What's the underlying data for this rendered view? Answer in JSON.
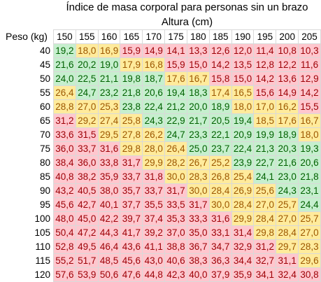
{
  "title": "Índice de masa corporal para personas sin un brazo",
  "subtitle": "Altura (cm)",
  "corner_label": "Peso (kg)",
  "heights": [
    "150",
    "155",
    "160",
    "165",
    "170",
    "175",
    "180",
    "185",
    "190",
    "195",
    "200",
    "205"
  ],
  "colors": {
    "green_bg": "#c6efce",
    "green_fg": "#006100",
    "yellow_bg": "#ffeb9c",
    "yellow_fg": "#9c5700",
    "red_bg": "#ffc7ce",
    "red_fg": "#9c0006"
  },
  "rows": [
    {
      "weight": "40",
      "cells": [
        [
          "19,2",
          "g"
        ],
        [
          "18,0",
          "y"
        ],
        [
          "16,9",
          "y"
        ],
        [
          "15,9",
          "r"
        ],
        [
          "14,9",
          "r"
        ],
        [
          "14,1",
          "r"
        ],
        [
          "13,3",
          "r"
        ],
        [
          "12,6",
          "r"
        ],
        [
          "12,0",
          "r"
        ],
        [
          "11,4",
          "r"
        ],
        [
          "10,8",
          "r"
        ],
        [
          "10,3",
          "r"
        ]
      ]
    },
    {
      "weight": "45",
      "cells": [
        [
          "21,6",
          "g"
        ],
        [
          "20,2",
          "g"
        ],
        [
          "19,0",
          "g"
        ],
        [
          "17,9",
          "y"
        ],
        [
          "16,8",
          "y"
        ],
        [
          "15,9",
          "r"
        ],
        [
          "15,0",
          "r"
        ],
        [
          "14,2",
          "r"
        ],
        [
          "13,5",
          "r"
        ],
        [
          "12,8",
          "r"
        ],
        [
          "12,2",
          "r"
        ],
        [
          "11,6",
          "r"
        ]
      ]
    },
    {
      "weight": "50",
      "cells": [
        [
          "24,0",
          "g"
        ],
        [
          "22,5",
          "g"
        ],
        [
          "21,1",
          "g"
        ],
        [
          "19,8",
          "g"
        ],
        [
          "18,7",
          "g"
        ],
        [
          "17,6",
          "y"
        ],
        [
          "16,7",
          "y"
        ],
        [
          "15,8",
          "r"
        ],
        [
          "15,0",
          "r"
        ],
        [
          "14,2",
          "r"
        ],
        [
          "13,6",
          "r"
        ],
        [
          "12,9",
          "r"
        ]
      ]
    },
    {
      "weight": "55",
      "cells": [
        [
          "26,4",
          "y"
        ],
        [
          "24,7",
          "g"
        ],
        [
          "23,2",
          "g"
        ],
        [
          "21,8",
          "g"
        ],
        [
          "20,6",
          "g"
        ],
        [
          "19,4",
          "g"
        ],
        [
          "18,3",
          "g"
        ],
        [
          "17,4",
          "y"
        ],
        [
          "16,5",
          "y"
        ],
        [
          "15,6",
          "r"
        ],
        [
          "14,9",
          "r"
        ],
        [
          "14,2",
          "r"
        ]
      ]
    },
    {
      "weight": "60",
      "cells": [
        [
          "28,8",
          "y"
        ],
        [
          "27,0",
          "y"
        ],
        [
          "25,3",
          "y"
        ],
        [
          "23,8",
          "g"
        ],
        [
          "22,4",
          "g"
        ],
        [
          "21,2",
          "g"
        ],
        [
          "20,0",
          "g"
        ],
        [
          "18,9",
          "g"
        ],
        [
          "18,0",
          "y"
        ],
        [
          "17,0",
          "y"
        ],
        [
          "16,2",
          "y"
        ],
        [
          "15,5",
          "r"
        ]
      ]
    },
    {
      "weight": "65",
      "cells": [
        [
          "31,2",
          "r"
        ],
        [
          "29,2",
          "y"
        ],
        [
          "27,4",
          "y"
        ],
        [
          "25,8",
          "y"
        ],
        [
          "24,3",
          "g"
        ],
        [
          "22,9",
          "g"
        ],
        [
          "21,7",
          "g"
        ],
        [
          "20,5",
          "g"
        ],
        [
          "19,4",
          "g"
        ],
        [
          "18,5",
          "y"
        ],
        [
          "17,6",
          "y"
        ],
        [
          "16,7",
          "y"
        ]
      ]
    },
    {
      "weight": "70",
      "cells": [
        [
          "33,6",
          "r"
        ],
        [
          "31,5",
          "r"
        ],
        [
          "29,5",
          "y"
        ],
        [
          "27,8",
          "y"
        ],
        [
          "26,2",
          "y"
        ],
        [
          "24,7",
          "g"
        ],
        [
          "23,3",
          "g"
        ],
        [
          "22,1",
          "g"
        ],
        [
          "20,9",
          "g"
        ],
        [
          "19,9",
          "g"
        ],
        [
          "18,9",
          "g"
        ],
        [
          "18,0",
          "y"
        ]
      ]
    },
    {
      "weight": "75",
      "cells": [
        [
          "36,0",
          "r"
        ],
        [
          "33,7",
          "r"
        ],
        [
          "31,6",
          "r"
        ],
        [
          "29,8",
          "y"
        ],
        [
          "28,0",
          "y"
        ],
        [
          "26,4",
          "y"
        ],
        [
          "25,0",
          "g"
        ],
        [
          "23,7",
          "g"
        ],
        [
          "22,4",
          "g"
        ],
        [
          "21,3",
          "g"
        ],
        [
          "20,3",
          "g"
        ],
        [
          "19,3",
          "g"
        ]
      ]
    },
    {
      "weight": "80",
      "cells": [
        [
          "38,4",
          "r"
        ],
        [
          "36,0",
          "r"
        ],
        [
          "33,8",
          "r"
        ],
        [
          "31,7",
          "r"
        ],
        [
          "29,9",
          "y"
        ],
        [
          "28,2",
          "y"
        ],
        [
          "26,7",
          "y"
        ],
        [
          "25,2",
          "y"
        ],
        [
          "23,9",
          "g"
        ],
        [
          "22,7",
          "g"
        ],
        [
          "21,6",
          "g"
        ],
        [
          "20,6",
          "g"
        ]
      ]
    },
    {
      "weight": "85",
      "cells": [
        [
          "40,8",
          "r"
        ],
        [
          "38,2",
          "r"
        ],
        [
          "35,9",
          "r"
        ],
        [
          "33,7",
          "r"
        ],
        [
          "31,8",
          "r"
        ],
        [
          "30,0",
          "y"
        ],
        [
          "28,3",
          "y"
        ],
        [
          "26,8",
          "y"
        ],
        [
          "25,4",
          "y"
        ],
        [
          "24,1",
          "g"
        ],
        [
          "23,0",
          "g"
        ],
        [
          "21,8",
          "g"
        ]
      ]
    },
    {
      "weight": "90",
      "cells": [
        [
          "43,2",
          "r"
        ],
        [
          "40,5",
          "r"
        ],
        [
          "38,0",
          "r"
        ],
        [
          "35,7",
          "r"
        ],
        [
          "33,7",
          "r"
        ],
        [
          "31,7",
          "r"
        ],
        [
          "30,0",
          "y"
        ],
        [
          "28,4",
          "y"
        ],
        [
          "26,9",
          "y"
        ],
        [
          "25,6",
          "y"
        ],
        [
          "24,3",
          "g"
        ],
        [
          "23,1",
          "g"
        ]
      ]
    },
    {
      "weight": "95",
      "cells": [
        [
          "45,6",
          "r"
        ],
        [
          "42,7",
          "r"
        ],
        [
          "40,1",
          "r"
        ],
        [
          "37,7",
          "r"
        ],
        [
          "35,5",
          "r"
        ],
        [
          "33,5",
          "r"
        ],
        [
          "31,7",
          "r"
        ],
        [
          "30,0",
          "y"
        ],
        [
          "28,4",
          "y"
        ],
        [
          "27,0",
          "y"
        ],
        [
          "25,7",
          "y"
        ],
        [
          "24,4",
          "g"
        ]
      ]
    },
    {
      "weight": "100",
      "cells": [
        [
          "48,0",
          "r"
        ],
        [
          "45,0",
          "r"
        ],
        [
          "42,2",
          "r"
        ],
        [
          "39,7",
          "r"
        ],
        [
          "37,4",
          "r"
        ],
        [
          "35,3",
          "r"
        ],
        [
          "33,3",
          "r"
        ],
        [
          "31,6",
          "r"
        ],
        [
          "29,9",
          "y"
        ],
        [
          "28,4",
          "y"
        ],
        [
          "27,0",
          "y"
        ],
        [
          "25,7",
          "y"
        ]
      ]
    },
    {
      "weight": "105",
      "cells": [
        [
          "50,4",
          "r"
        ],
        [
          "47,2",
          "r"
        ],
        [
          "44,3",
          "r"
        ],
        [
          "41,7",
          "r"
        ],
        [
          "39,2",
          "r"
        ],
        [
          "37,0",
          "r"
        ],
        [
          "35,0",
          "r"
        ],
        [
          "33,1",
          "r"
        ],
        [
          "31,4",
          "r"
        ],
        [
          "29,8",
          "y"
        ],
        [
          "28,4",
          "y"
        ],
        [
          "27,0",
          "y"
        ]
      ]
    },
    {
      "weight": "110",
      "cells": [
        [
          "52,8",
          "r"
        ],
        [
          "49,5",
          "r"
        ],
        [
          "46,4",
          "r"
        ],
        [
          "43,6",
          "r"
        ],
        [
          "41,1",
          "r"
        ],
        [
          "38,8",
          "r"
        ],
        [
          "36,7",
          "r"
        ],
        [
          "34,7",
          "r"
        ],
        [
          "32,9",
          "r"
        ],
        [
          "31,2",
          "r"
        ],
        [
          "29,7",
          "y"
        ],
        [
          "28,3",
          "y"
        ]
      ]
    },
    {
      "weight": "115",
      "cells": [
        [
          "55,2",
          "r"
        ],
        [
          "51,7",
          "r"
        ],
        [
          "48,5",
          "r"
        ],
        [
          "45,6",
          "r"
        ],
        [
          "43,0",
          "r"
        ],
        [
          "40,6",
          "r"
        ],
        [
          "38,3",
          "r"
        ],
        [
          "36,3",
          "r"
        ],
        [
          "34,4",
          "r"
        ],
        [
          "32,7",
          "r"
        ],
        [
          "31,1",
          "r"
        ],
        [
          "29,6",
          "y"
        ]
      ]
    },
    {
      "weight": "120",
      "cells": [
        [
          "57,6",
          "r"
        ],
        [
          "53,9",
          "r"
        ],
        [
          "50,6",
          "r"
        ],
        [
          "47,6",
          "r"
        ],
        [
          "44,8",
          "r"
        ],
        [
          "42,3",
          "r"
        ],
        [
          "40,0",
          "r"
        ],
        [
          "37,9",
          "r"
        ],
        [
          "35,9",
          "r"
        ],
        [
          "34,1",
          "r"
        ],
        [
          "32,4",
          "r"
        ],
        [
          "30,8",
          "r"
        ]
      ]
    }
  ]
}
